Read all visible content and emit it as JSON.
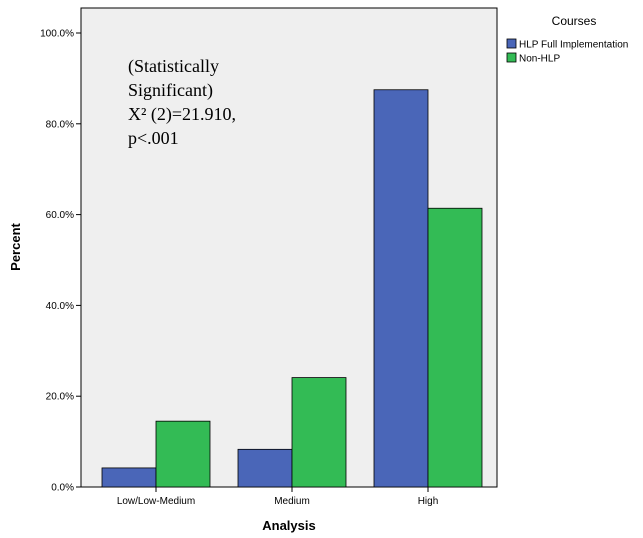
{
  "chart_data": {
    "type": "bar",
    "categories": [
      "Low/Low-Medium",
      "Medium",
      "High"
    ],
    "series": [
      {
        "name": "HLP Full Implementation",
        "values": [
          4.2,
          8.3,
          87.5
        ],
        "color": "#4a66b8"
      },
      {
        "name": "Non-HLP",
        "values": [
          14.5,
          24.1,
          61.4
        ],
        "color": "#33bb55"
      }
    ],
    "xlabel": "Analysis",
    "ylabel": "Percent",
    "ylim": [
      0,
      100
    ],
    "yticks": [
      "0.0%",
      "20.0%",
      "40.0%",
      "60.0%",
      "80.0%",
      "100.0%"
    ],
    "ytick_values": [
      0,
      20,
      40,
      60,
      80,
      100
    ],
    "legend": {
      "title": "Courses",
      "placement": "top-right, outside plot"
    },
    "annotation": [
      "(Statistically",
      "Significant)",
      "X² (2)=21.910,",
      "p<.001"
    ],
    "plot_background": "#efefef",
    "grid": false
  }
}
